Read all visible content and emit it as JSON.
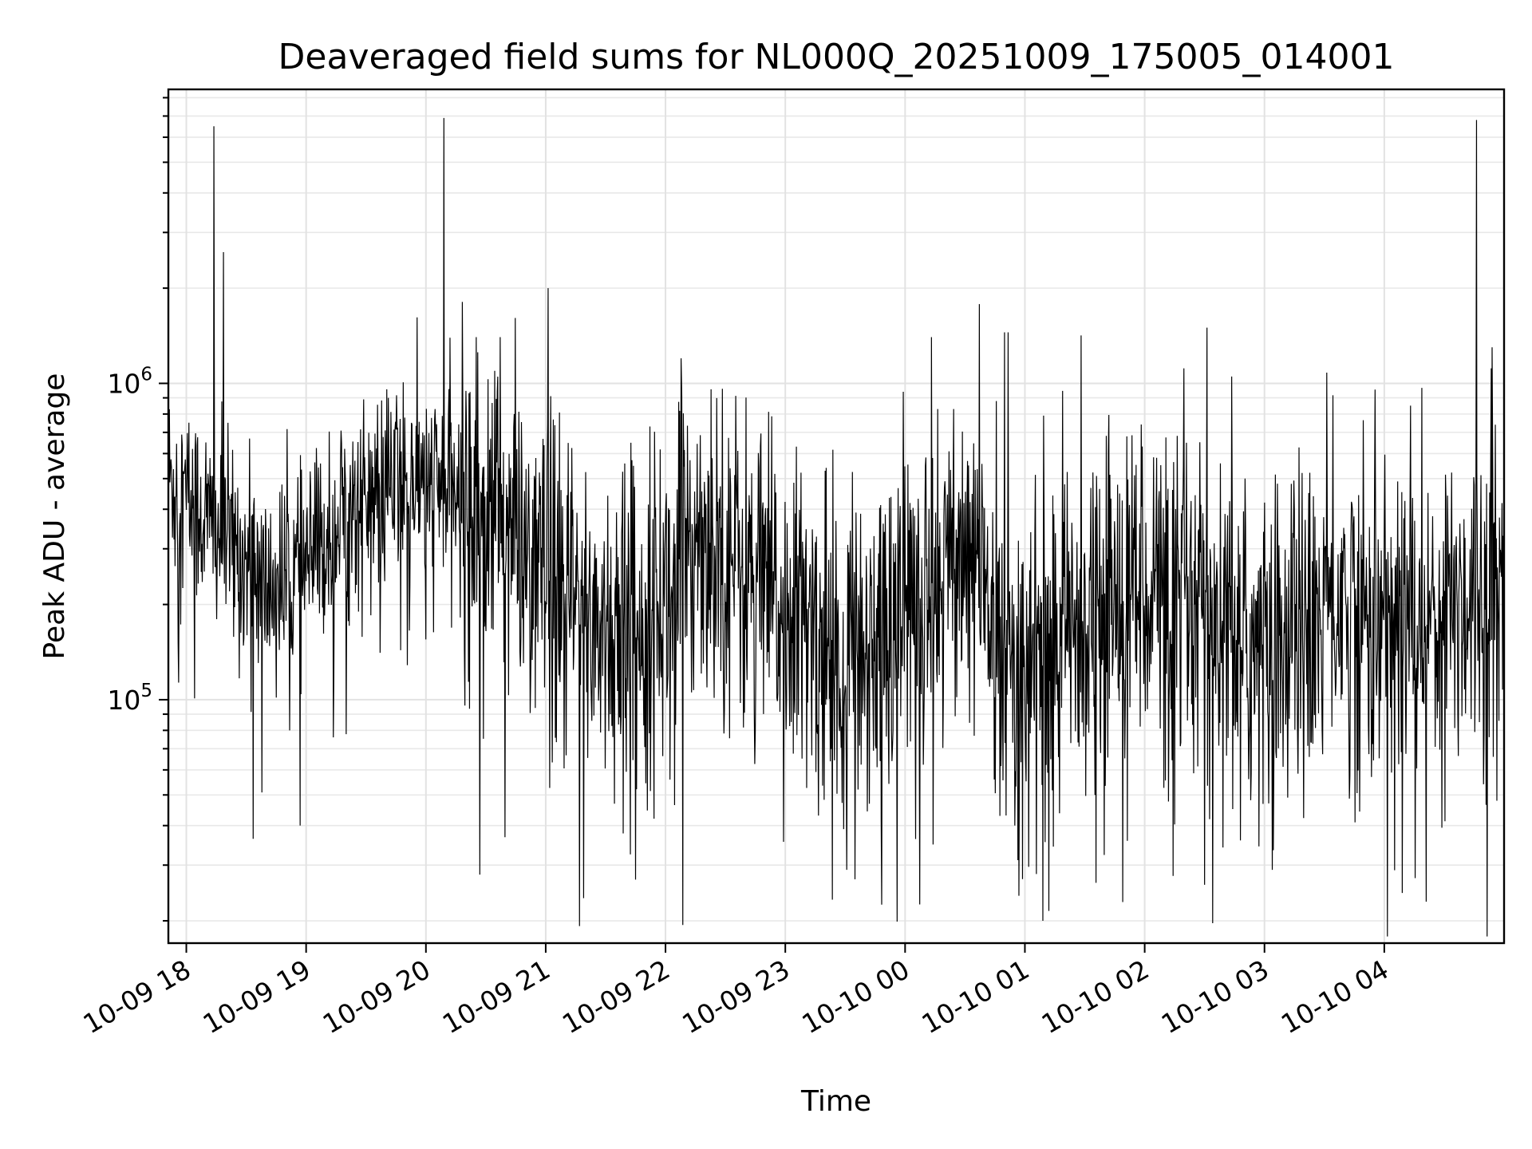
{
  "chart_data": {
    "type": "line",
    "title": "Deaveraged field sums for NL000Q_20251009_175005_014001",
    "xlabel": "Time",
    "ylabel": "Peak ADU - average",
    "yscale": "log",
    "ylim": [
      17000,
      8500000
    ],
    "xlim_hours": [
      -0.15,
      11.0
    ],
    "x_ticks": [
      {
        "label": "10-09 18",
        "hour": 0
      },
      {
        "label": "10-09 19",
        "hour": 1
      },
      {
        "label": "10-09 20",
        "hour": 2
      },
      {
        "label": "10-09 21",
        "hour": 3
      },
      {
        "label": "10-09 22",
        "hour": 4
      },
      {
        "label": "10-09 23",
        "hour": 5
      },
      {
        "label": "10-10 00",
        "hour": 6
      },
      {
        "label": "10-10 01",
        "hour": 7
      },
      {
        "label": "10-10 02",
        "hour": 8
      },
      {
        "label": "10-10 03",
        "hour": 9
      },
      {
        "label": "10-10 04",
        "hour": 10
      }
    ],
    "y_ticks": [
      {
        "base": "10",
        "exp": "5",
        "value": 100000
      },
      {
        "base": "10",
        "exp": "6",
        "value": 1000000
      }
    ],
    "grid": true,
    "series": [
      {
        "name": "deaveraged field sums",
        "color": "#000000",
        "baseline": [
          {
            "hour": -0.15,
            "value": 500000
          },
          {
            "hour": 0.3,
            "value": 330000
          },
          {
            "hour": 0.7,
            "value": 220000
          },
          {
            "hour": 1.0,
            "value": 260000
          },
          {
            "hour": 1.3,
            "value": 380000
          },
          {
            "hour": 1.8,
            "value": 500000
          },
          {
            "hour": 2.2,
            "value": 450000
          },
          {
            "hour": 2.6,
            "value": 400000
          },
          {
            "hour": 3.0,
            "value": 230000
          },
          {
            "hour": 3.5,
            "value": 170000
          },
          {
            "hour": 4.0,
            "value": 210000
          },
          {
            "hour": 4.3,
            "value": 360000
          },
          {
            "hour": 4.9,
            "value": 200000
          },
          {
            "hour": 5.5,
            "value": 130000
          },
          {
            "hour": 6.0,
            "value": 200000
          },
          {
            "hour": 6.5,
            "value": 300000
          },
          {
            "hour": 7.0,
            "value": 120000
          },
          {
            "hour": 7.5,
            "value": 190000
          },
          {
            "hour": 8.0,
            "value": 250000
          },
          {
            "hour": 8.5,
            "value": 180000
          },
          {
            "hour": 9.0,
            "value": 140000
          },
          {
            "hour": 9.5,
            "value": 210000
          },
          {
            "hour": 10.0,
            "value": 170000
          },
          {
            "hour": 10.5,
            "value": 200000
          },
          {
            "hour": 11.0,
            "value": 240000
          }
        ],
        "spikes": [
          {
            "hour": 0.23,
            "value": 6500000
          },
          {
            "hour": 0.31,
            "value": 2600000
          },
          {
            "hour": 2.15,
            "value": 6900000
          },
          {
            "hour": 3.02,
            "value": 2000000
          },
          {
            "hour": 2.42,
            "value": 1400000
          },
          {
            "hour": 2.62,
            "value": 1400000
          },
          {
            "hour": 4.13,
            "value": 1200000
          },
          {
            "hour": 6.22,
            "value": 1400000
          },
          {
            "hour": 6.83,
            "value": 1450000
          },
          {
            "hour": 6.86,
            "value": 1450000
          },
          {
            "hour": 8.52,
            "value": 1500000
          },
          {
            "hour": 10.77,
            "value": 6800000
          },
          {
            "hour": 10.9,
            "value": 1300000
          }
        ],
        "dips": [
          {
            "hour": 0.95,
            "value": 40000
          },
          {
            "hour": 2.45,
            "value": 28000
          },
          {
            "hour": 3.75,
            "value": 27000
          },
          {
            "hour": 6.95,
            "value": 24000
          },
          {
            "hour": 7.15,
            "value": 20000
          },
          {
            "hour": 7.2,
            "value": 21500
          },
          {
            "hour": 8.5,
            "value": 26000
          },
          {
            "hour": 10.15,
            "value": 24500
          },
          {
            "hour": 10.35,
            "value": 23000
          }
        ]
      }
    ]
  }
}
